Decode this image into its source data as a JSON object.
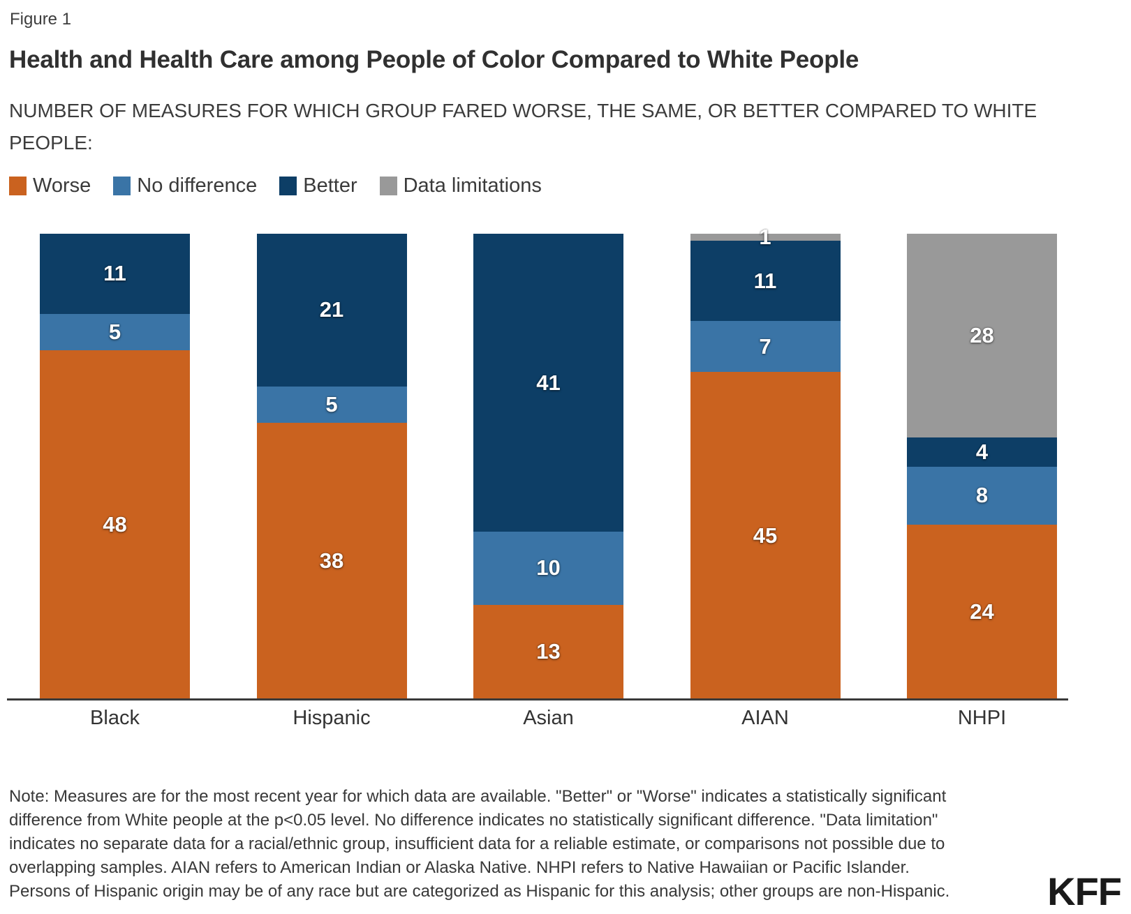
{
  "figure_label": "Figure 1",
  "title": "Health and Health Care among People of Color Compared to White People",
  "subtitle": "NUMBER OF MEASURES FOR WHICH GROUP FARED WORSE, THE SAME, OR BETTER COMPARED TO WHITE PEOPLE:",
  "colors": {
    "worse": "#ca621f",
    "no_difference": "#3a74a6",
    "better": "#0d3e66",
    "data_limitations": "#999999",
    "axis": "#3a3a3a"
  },
  "legend": [
    {
      "label": "Worse",
      "color_key": "worse"
    },
    {
      "label": "No difference",
      "color_key": "no_difference"
    },
    {
      "label": "Better",
      "color_key": "better"
    },
    {
      "label": "Data limitations",
      "color_key": "data_limitations"
    }
  ],
  "chart_data": {
    "type": "bar",
    "stacked": true,
    "categories": [
      "Black",
      "Hispanic",
      "Asian",
      "AIAN",
      "NHPI"
    ],
    "series": [
      {
        "name": "Worse",
        "color_key": "worse",
        "values": [
          48,
          38,
          13,
          45,
          24
        ]
      },
      {
        "name": "No difference",
        "color_key": "no_difference",
        "values": [
          5,
          5,
          10,
          7,
          8
        ]
      },
      {
        "name": "Better",
        "color_key": "better",
        "values": [
          11,
          21,
          41,
          11,
          4
        ]
      },
      {
        "name": "Data limitations",
        "color_key": "data_limitations",
        "values": [
          0,
          0,
          0,
          1,
          28
        ]
      }
    ],
    "total_per_bar": 64,
    "ylim": [
      0,
      64
    ],
    "grid": false,
    "legend_position": "top-left",
    "xlabel": "",
    "ylabel": ""
  },
  "note_lines": [
    "Note: Measures are for the most recent year for which data are available. \"Better\" or \"Worse\" indicates a statistically significant",
    "difference from White people at the p<0.05 level. No difference indicates no statistically significant difference. \"Data limitation\"",
    "indicates no separate data for a racial/ethnic group, insufficient data for a reliable estimate, or comparisons not possible due to",
    "overlapping samples. AIAN refers to American Indian or Alaska Native. NHPI refers to Native Hawaiian or Pacific Islander.",
    "Persons of Hispanic origin may be of any race but are categorized as Hispanic for this analysis; other groups are non-Hispanic."
  ],
  "logo": {
    "text": "KFF"
  }
}
